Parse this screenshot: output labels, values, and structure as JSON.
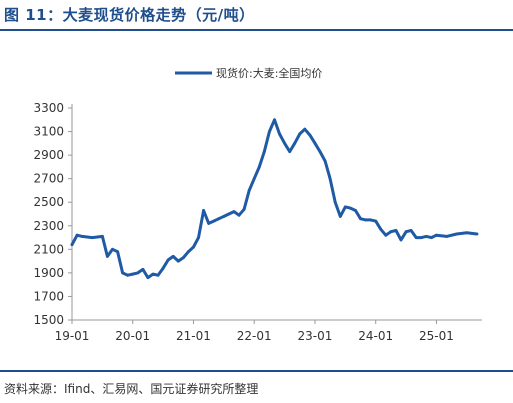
{
  "figure": {
    "title": "图 11：大麦现货价格走势（元/吨）",
    "source": "资料来源：Ifind、汇易网、国元证券研究所整理"
  },
  "colors": {
    "accent": "#1f4e8c",
    "series": "#1f5aa6"
  },
  "chart_data": {
    "type": "line",
    "title": "",
    "xlabel": "",
    "ylabel": "",
    "x_tick_labels": [
      "19-01",
      "20-01",
      "21-01",
      "22-01",
      "23-01",
      "24-01",
      "25-01"
    ],
    "y_ticks": [
      1500,
      1700,
      1900,
      2100,
      2300,
      2500,
      2700,
      2900,
      3100,
      3300
    ],
    "ylim": [
      1500,
      3300
    ],
    "xlim": [
      "2019-01",
      "2025-10"
    ],
    "grid": false,
    "legend_position": "top-center",
    "series": [
      {
        "name": "现货价:大麦:全国均价",
        "x": [
          "2019-01",
          "2019-02",
          "2019-03",
          "2019-05",
          "2019-07",
          "2019-08",
          "2019-09",
          "2019-10",
          "2019-11",
          "2019-12",
          "2020-01",
          "2020-02",
          "2020-03",
          "2020-04",
          "2020-05",
          "2020-06",
          "2020-07",
          "2020-08",
          "2020-09",
          "2020-10",
          "2020-11",
          "2020-12",
          "2021-01",
          "2021-02",
          "2021-03",
          "2021-04",
          "2021-05",
          "2021-06",
          "2021-07",
          "2021-08",
          "2021-09",
          "2021-10",
          "2021-11",
          "2021-12",
          "2022-01",
          "2022-02",
          "2022-03",
          "2022-04",
          "2022-05",
          "2022-06",
          "2022-07",
          "2022-08",
          "2022-09",
          "2022-10",
          "2022-11",
          "2022-12",
          "2023-01",
          "2023-02",
          "2023-03",
          "2023-04",
          "2023-05",
          "2023-06",
          "2023-07",
          "2023-08",
          "2023-09",
          "2023-10",
          "2023-11",
          "2023-12",
          "2024-01",
          "2024-02",
          "2024-03",
          "2024-04",
          "2024-05",
          "2024-06",
          "2024-07",
          "2024-08",
          "2024-09",
          "2024-10",
          "2024-11",
          "2024-12",
          "2025-01",
          "2025-03",
          "2025-05",
          "2025-07",
          "2025-09"
        ],
        "y": [
          2140,
          2220,
          2210,
          2200,
          2210,
          2040,
          2100,
          2080,
          1900,
          1880,
          1890,
          1900,
          1930,
          1860,
          1890,
          1880,
          1940,
          2010,
          2040,
          2000,
          2030,
          2080,
          2120,
          2200,
          2430,
          2320,
          2340,
          2360,
          2380,
          2400,
          2420,
          2390,
          2440,
          2600,
          2700,
          2800,
          2930,
          3100,
          3200,
          3080,
          3000,
          2930,
          3000,
          3080,
          3120,
          3070,
          3000,
          2930,
          2850,
          2700,
          2500,
          2380,
          2460,
          2450,
          2430,
          2360,
          2350,
          2350,
          2340,
          2270,
          2220,
          2250,
          2260,
          2180,
          2250,
          2260,
          2200,
          2200,
          2210,
          2200,
          2220,
          2210,
          2230,
          2240,
          2230
        ]
      }
    ]
  }
}
